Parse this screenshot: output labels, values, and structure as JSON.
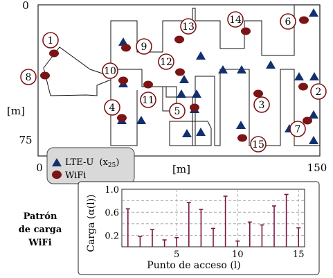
{
  "map": {
    "x_axis_label": "[m]",
    "y_axis_label": "[m]",
    "x_ticks": [
      "0",
      "150"
    ],
    "y_ticks": [
      "0",
      "75"
    ],
    "corner_tick": "0",
    "colors": {
      "lte": "#142f6e",
      "wifi": "#7b1414",
      "walls": "#111111"
    },
    "wifi_labels": [
      "1",
      "2",
      "3",
      "4",
      "5",
      "6",
      "7",
      "8",
      "9",
      "10",
      "11",
      "12",
      "13",
      "14",
      "15"
    ],
    "lte_marker": "triangle",
    "wifi_marker": "circle"
  },
  "legend": {
    "lte_label": "LTE-U",
    "lte_math": "(x",
    "lte_sub": "25",
    "lte_close": ")",
    "wifi_label": "WiFi"
  },
  "panel": {
    "title_lines": [
      "Patrón",
      "de carga",
      "WiFi"
    ]
  },
  "chart_data": {
    "type": "stem",
    "xlabel": "Punto de acceso (l)",
    "ylabel": "Carga (α(l))",
    "x_ticks": [
      5,
      10,
      15
    ],
    "y_ticks": [
      0.2,
      0.6,
      1.0
    ],
    "y_tick_labels": [
      "0.2",
      "0.6",
      "1.0"
    ],
    "xlim": [
      0.5,
      15.5
    ],
    "ylim": [
      0,
      1.0
    ],
    "grid": true,
    "color": "#7b1545",
    "x": [
      1,
      2,
      3,
      4,
      5,
      6,
      7,
      8,
      9,
      10,
      11,
      12,
      13,
      14,
      15
    ],
    "values": [
      0.66,
      0.18,
      0.3,
      0.12,
      0.16,
      0.77,
      0.65,
      0.32,
      0.88,
      0.1,
      0.43,
      0.38,
      0.71,
      0.91,
      0.33
    ]
  }
}
